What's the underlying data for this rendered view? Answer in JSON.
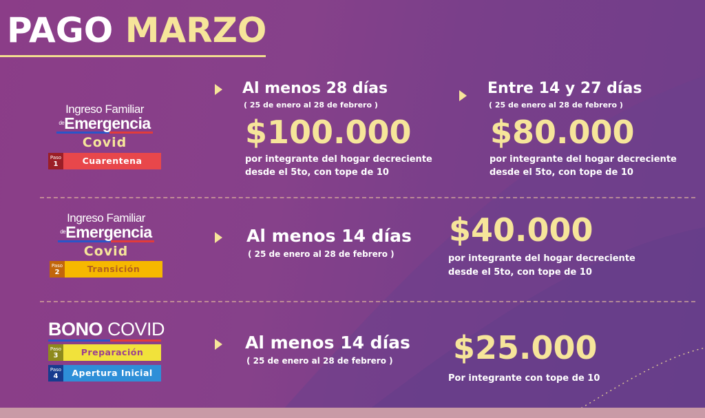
{
  "title": {
    "word1": "PAGO",
    "word2": "MARZO"
  },
  "colors": {
    "background": "#8a3f86",
    "accent": "#f6e59a",
    "text": "#ffffff"
  },
  "logo_ife": {
    "line1": "Ingreso Familiar",
    "line2_prefix": "de",
    "line2": "Emergencia",
    "line3": "Covid"
  },
  "logo_bono": {
    "word1": "BONO",
    "word2": "COVID"
  },
  "paso_label": "Paso",
  "row1": {
    "paso": {
      "number": "1",
      "label": "Cuarentena",
      "color": "#e8474b",
      "num_color": "#9b1e27"
    },
    "left": {
      "heading": "Al menos 28 días",
      "dates": "( 25 de enero al 28 de febrero )",
      "amount": "$100.000",
      "desc1": "por integrante del hogar  decreciente",
      "desc2": "desde el 5to, con tope de 10"
    },
    "right": {
      "heading": "Entre 14 y 27 días",
      "dates": "( 25 de enero al 28 de febrero )",
      "amount": "$80.000",
      "desc1": "por integrante del hogar  decreciente",
      "desc2": "desde el 5to, con tope de 10"
    }
  },
  "row2": {
    "paso": {
      "number": "2",
      "label": "Transición",
      "color": "#f6b800",
      "num_color": "#c2660b"
    },
    "heading": "Al menos 14 días",
    "dates": "( 25 de enero al 28 de febrero )",
    "amount": "$40.000",
    "desc1": "por integrante del hogar  decreciente",
    "desc2": "desde el 5to, con tope de 10"
  },
  "row3": {
    "paso3": {
      "number": "3",
      "label": "Preparación",
      "color": "#f1e23b",
      "num_color": "#8e8a1d"
    },
    "paso4": {
      "number": "4",
      "label": "Apertura Inicial",
      "color": "#2e8fd8",
      "num_color": "#173c8e"
    },
    "heading": "Al menos 14 días",
    "dates": "( 25 de enero al 28 de febrero )",
    "amount": "$25.000",
    "desc1": "Por integrante con tope de 10"
  }
}
